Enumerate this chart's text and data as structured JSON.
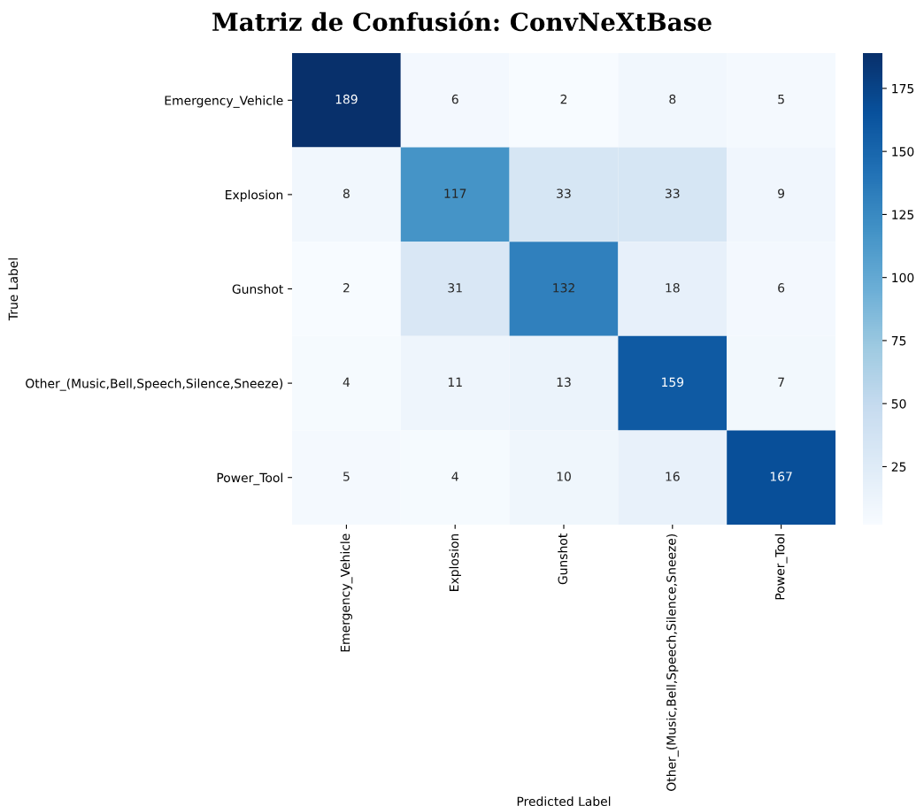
{
  "chart_data": {
    "type": "heatmap",
    "title": "Matriz de Confusión: ConvNeXtBase",
    "xlabel": "Predicted Label",
    "ylabel": "True Label",
    "categories": [
      "Emergency_Vehicle",
      "Explosion",
      "Gunshot",
      "Other_(Music,Bell,Speech,Silence,Sneeze)",
      "Power_Tool"
    ],
    "y_categories": [
      "Emergency_Vehicle",
      "Explosion",
      "Gunshot",
      "Other_(Music,Bell,Speech,Silence,Sneeze)",
      "Power_Tool"
    ],
    "cells": [
      [
        189,
        6,
        2,
        8,
        5
      ],
      [
        8,
        117,
        33,
        33,
        9
      ],
      [
        2,
        31,
        132,
        18,
        6
      ],
      [
        4,
        11,
        13,
        159,
        7
      ],
      [
        5,
        4,
        10,
        16,
        167
      ]
    ],
    "data_labels": true,
    "clim": [
      2,
      189
    ],
    "cticks": [
      25,
      50,
      75,
      100,
      125,
      150,
      175
    ]
  }
}
